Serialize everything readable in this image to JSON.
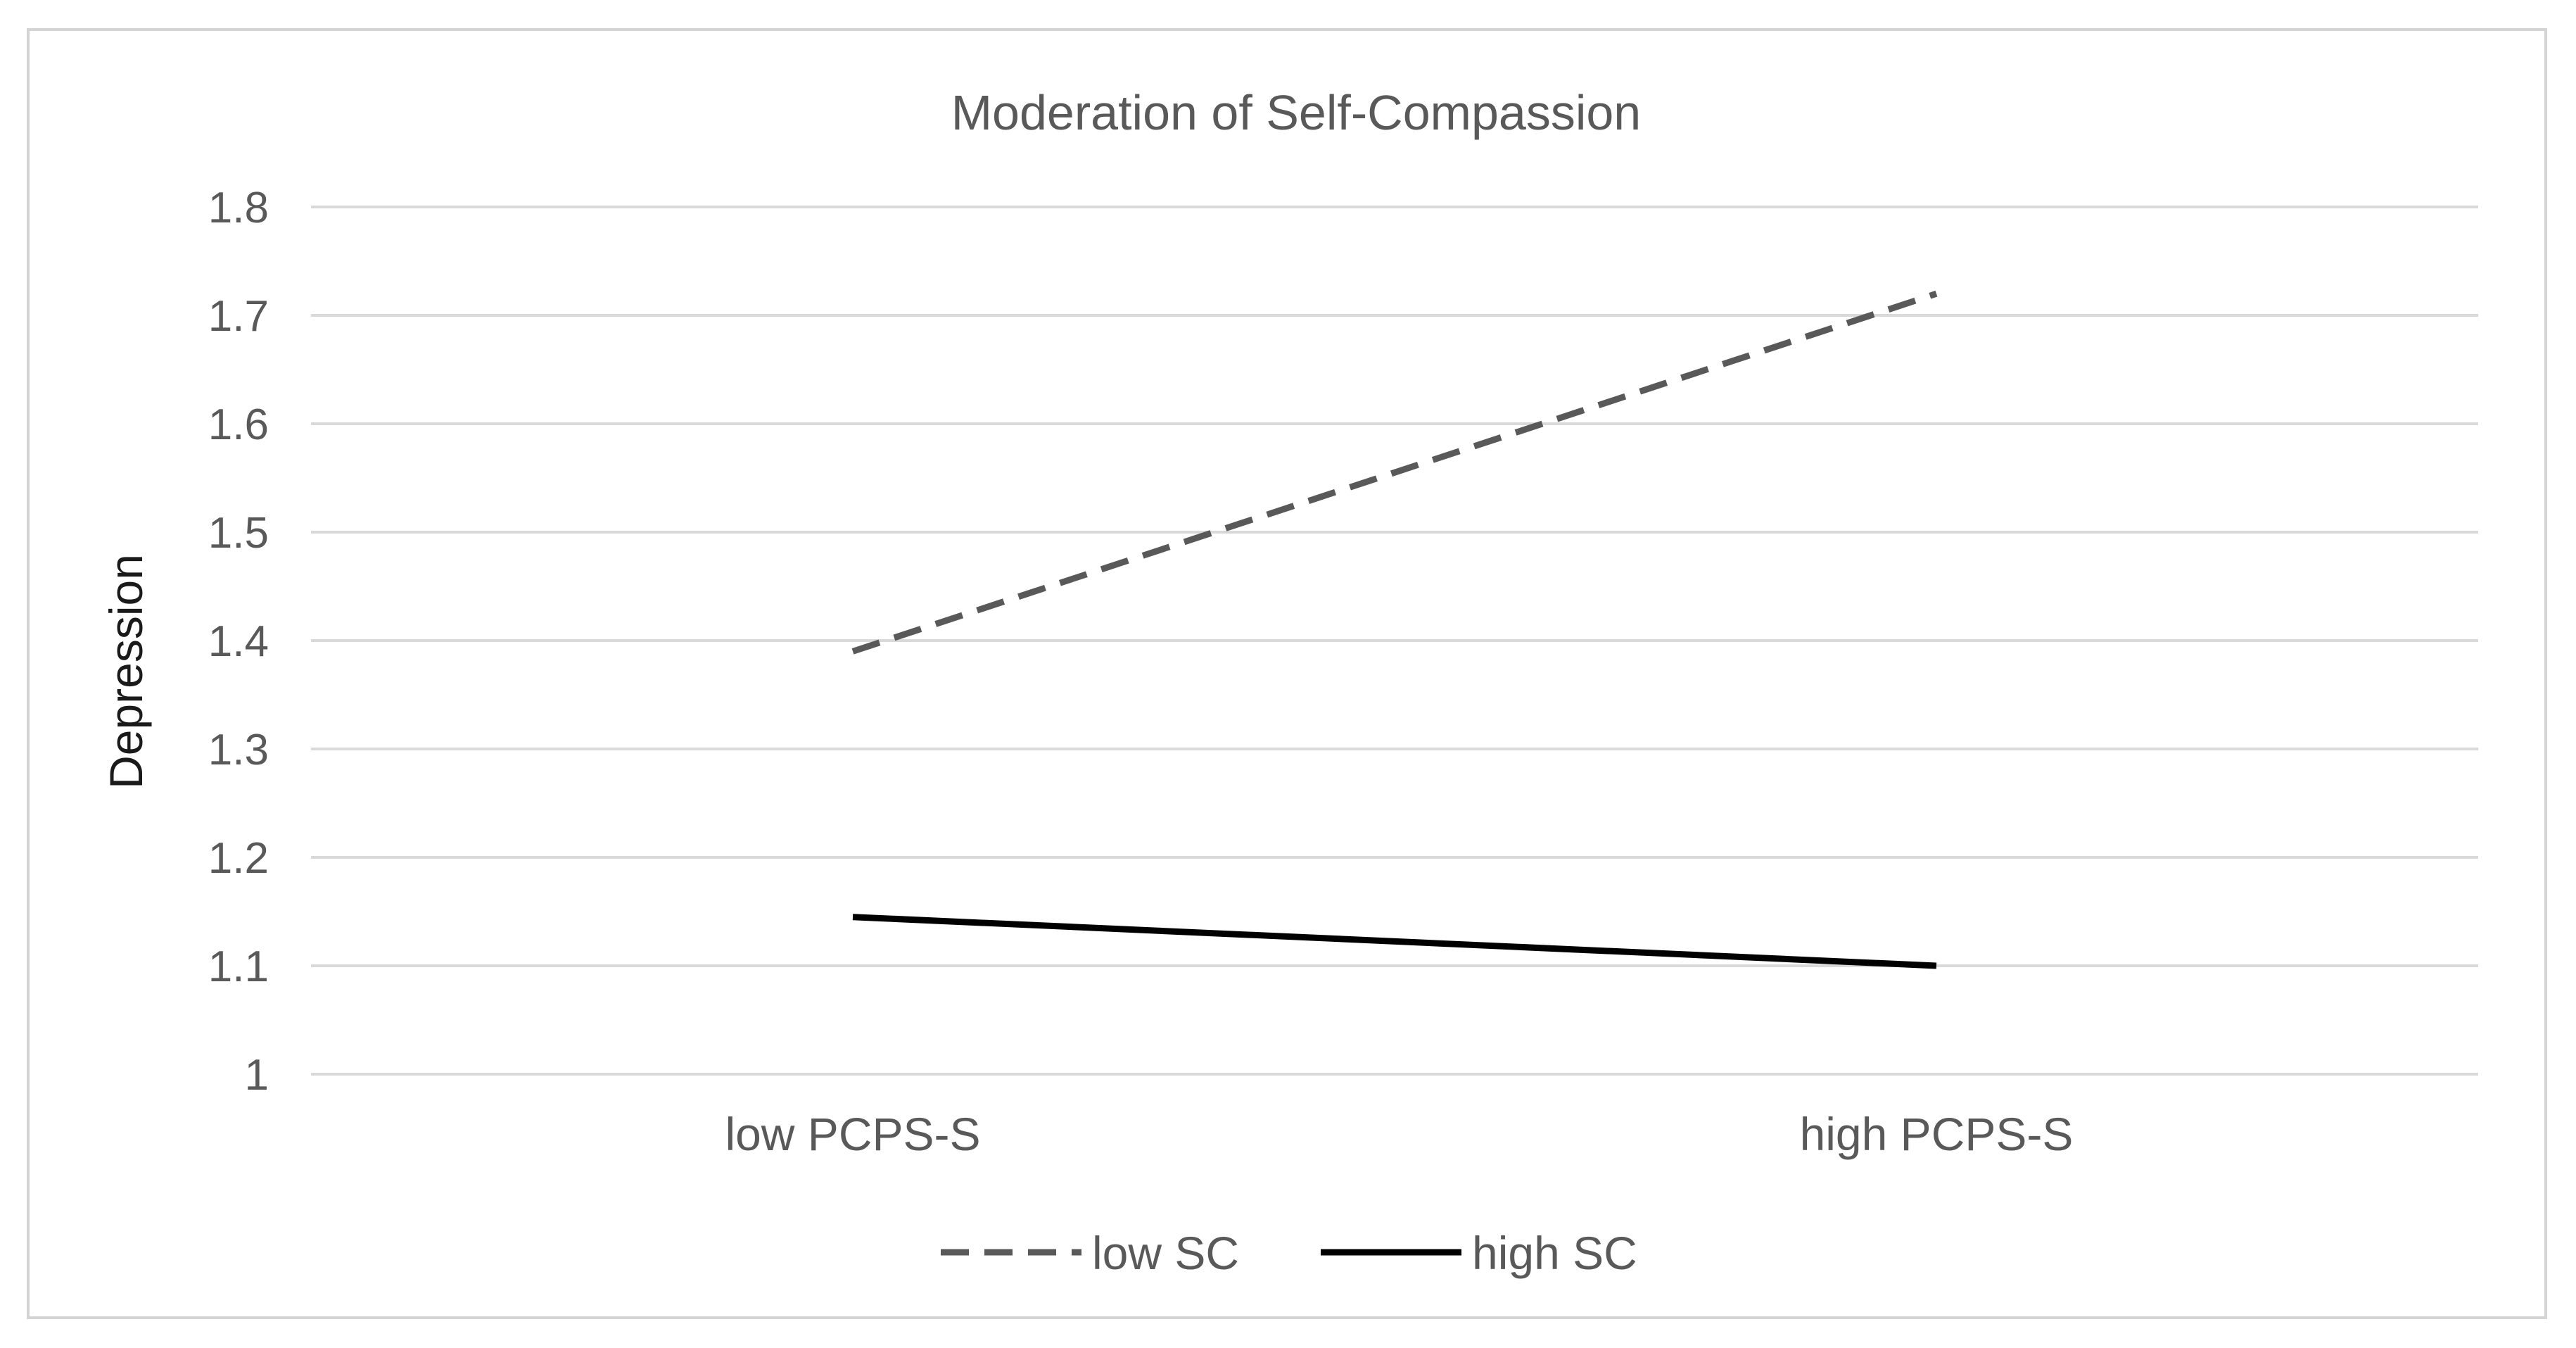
{
  "chart_data": {
    "type": "line",
    "title": "Moderation of Self-Compassion",
    "xlabel": "",
    "ylabel": "Depression",
    "categories": [
      "low PCPS-S",
      "high PCPS-S"
    ],
    "yticks": [
      "1",
      "1.1",
      "1.2",
      "1.3",
      "1.4",
      "1.5",
      "1.6",
      "1.7",
      "1.8"
    ],
    "ylim": [
      1,
      1.8
    ],
    "grid": true,
    "legend_position": "bottom",
    "series": [
      {
        "name": "low SC",
        "values": [
          1.39,
          1.72
        ],
        "style": "dashed",
        "color": "#595959"
      },
      {
        "name": "high SC",
        "values": [
          1.145,
          1.1
        ],
        "style": "solid",
        "color": "#000000"
      }
    ],
    "colors": {
      "grid": "#d9d9d9",
      "text": "#595959",
      "frame": "#d4d4d4"
    }
  }
}
